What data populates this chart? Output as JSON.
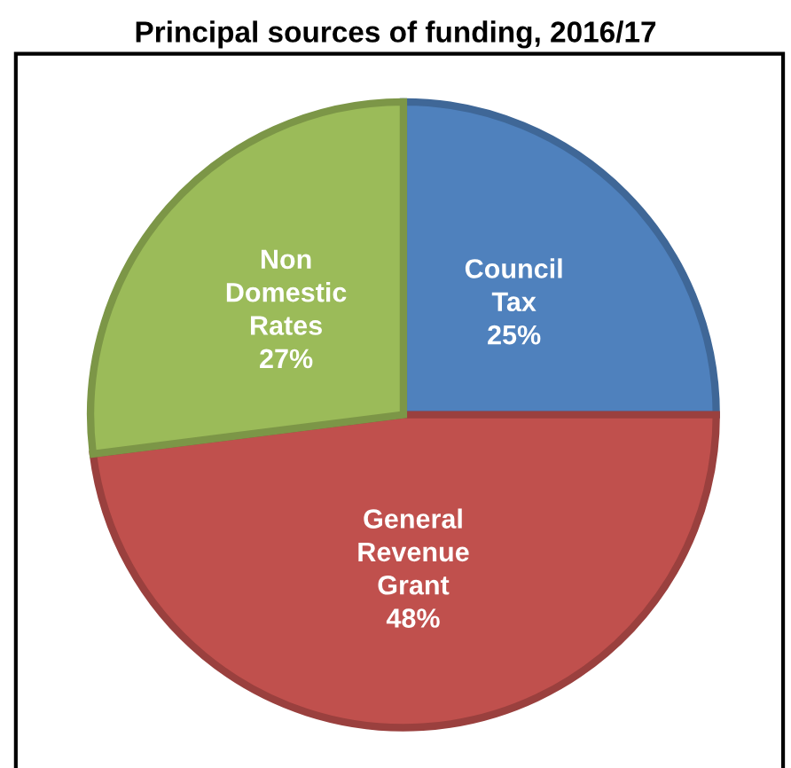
{
  "chart_data": {
    "type": "pie",
    "title": "Principal sources of funding, 2016/17",
    "categories": [
      "Council\nTax",
      "General\nRevenue\nGrant",
      "Non\nDomestic\nRates"
    ],
    "values": [
      25,
      48,
      27
    ],
    "colors": [
      "#4f81bd",
      "#c0504d",
      "#9bbb59"
    ],
    "value_labels": [
      "25%",
      "48%",
      "27%"
    ],
    "legend": false
  }
}
